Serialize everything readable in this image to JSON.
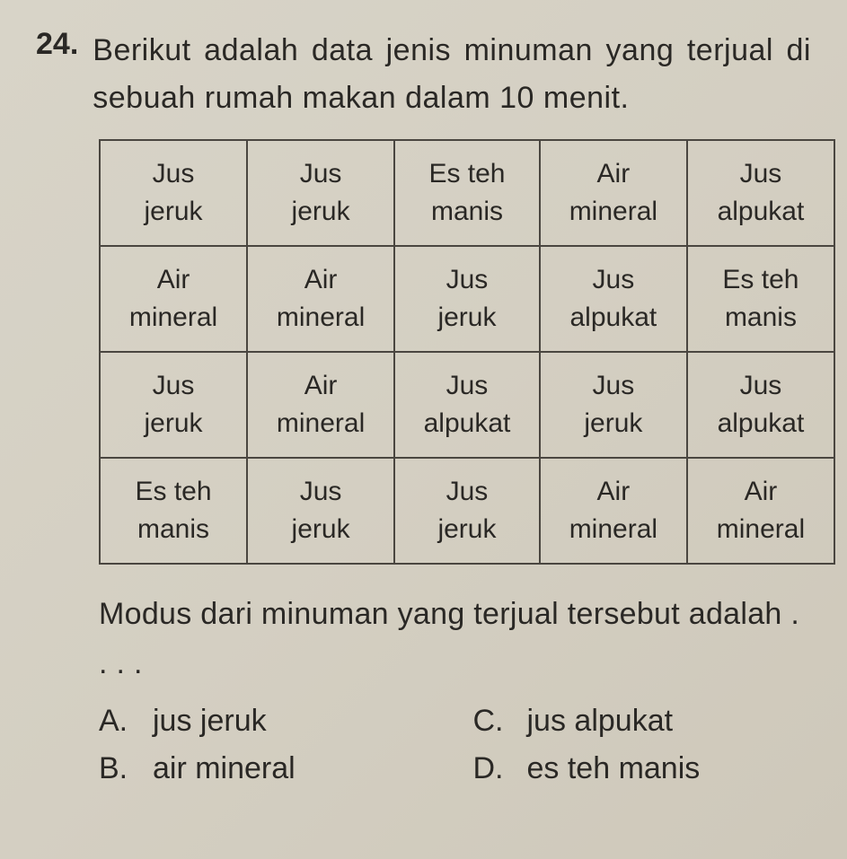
{
  "question": {
    "number": "24.",
    "text": "Berikut adalah data jenis minuman yang terjual di sebuah rumah makan dalam 10 menit."
  },
  "table": {
    "type": "table",
    "columns": 5,
    "rows_count": 4,
    "border_color": "#4a4640",
    "background_color": "transparent",
    "font_size_pt": 22,
    "rows": [
      [
        "Jus jeruk",
        "Jus jeruk",
        "Es teh manis",
        "Air mineral",
        "Jus alpukat"
      ],
      [
        "Air mineral",
        "Air mineral",
        "Jus jeruk",
        "Jus alpukat",
        "Es teh manis"
      ],
      [
        "Jus jeruk",
        "Air mineral",
        "Jus alpukat",
        "Jus jeruk",
        "Jus alpukat"
      ],
      [
        "Es teh manis",
        "Jus jeruk",
        "Jus jeruk",
        "Air mineral",
        "Air mineral"
      ]
    ]
  },
  "post_question": "Modus dari minuman yang terjual tersebut adalah . . . .",
  "options": {
    "A": {
      "letter": "A.",
      "text": "jus jeruk"
    },
    "B": {
      "letter": "B.",
      "text": "air mineral"
    },
    "C": {
      "letter": "C.",
      "text": "jus alpukat"
    },
    "D": {
      "letter": "D.",
      "text": "es teh manis"
    }
  },
  "style": {
    "page_bg_start": "#d8d4c8",
    "page_bg_end": "#cec8ba",
    "text_color": "#2a2825",
    "question_fontsize_pt": 26,
    "question_fontweight_number": "bold"
  }
}
